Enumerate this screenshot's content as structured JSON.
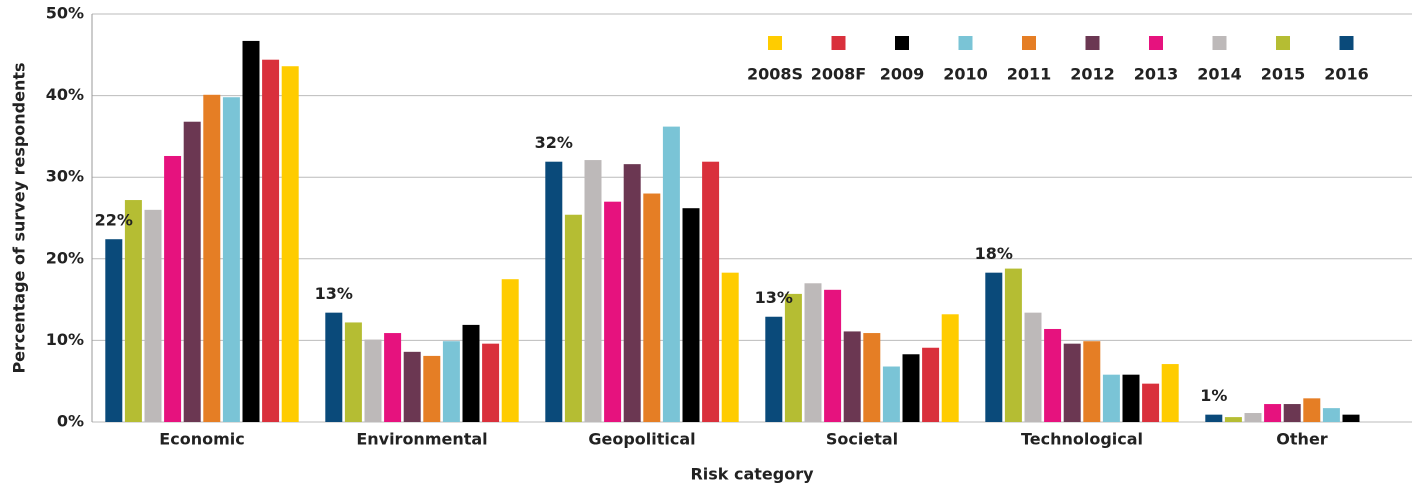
{
  "chart_data": {
    "type": "bar",
    "x_label": "Risk category",
    "y_label": "Percentage of survey respondents",
    "categories": [
      "Economic",
      "Environmental",
      "Geopolitical",
      "Societal",
      "Technological",
      "Other"
    ],
    "ylim": [
      0,
      50
    ],
    "yticks": [
      {
        "value": 0,
        "label": "0%"
      },
      {
        "value": 10,
        "label": "10%"
      },
      {
        "value": 20,
        "label": "20%"
      },
      {
        "value": 30,
        "label": "30%"
      },
      {
        "value": 40,
        "label": "40%"
      },
      {
        "value": 50,
        "label": "50%"
      }
    ],
    "grid": true,
    "legend": "top-right",
    "series": [
      {
        "name": "2008S",
        "color": "#ffcc00",
        "values": [
          43.6,
          17.5,
          18.3,
          13.2,
          7.1,
          null
        ]
      },
      {
        "name": "2008F",
        "color": "#d9303c",
        "values": [
          44.4,
          9.6,
          31.9,
          9.1,
          4.7,
          null
        ]
      },
      {
        "name": "2009",
        "color": "#000000",
        "values": [
          46.7,
          11.9,
          26.2,
          8.3,
          5.8,
          0.9
        ]
      },
      {
        "name": "2010",
        "color": "#7ac4d6",
        "values": [
          39.8,
          9.9,
          36.2,
          6.8,
          5.8,
          1.7
        ]
      },
      {
        "name": "2011",
        "color": "#e57e25",
        "values": [
          40.1,
          8.1,
          28.0,
          10.9,
          9.9,
          2.9
        ]
      },
      {
        "name": "2012",
        "color": "#6b3752",
        "values": [
          36.8,
          8.6,
          31.6,
          11.1,
          9.6,
          2.2
        ]
      },
      {
        "name": "2013",
        "color": "#e6127e",
        "values": [
          32.6,
          10.9,
          27.0,
          16.2,
          11.4,
          2.2
        ]
      },
      {
        "name": "2014",
        "color": "#bdb9b9",
        "values": [
          26.0,
          10.1,
          32.1,
          17.0,
          13.4,
          1.1
        ]
      },
      {
        "name": "2015",
        "color": "#b5bd33",
        "values": [
          27.2,
          12.2,
          25.4,
          15.7,
          18.8,
          0.6
        ]
      },
      {
        "name": "2016",
        "color": "#0a4a7a",
        "values": [
          22.4,
          13.4,
          31.9,
          12.9,
          18.3,
          0.9
        ],
        "value_labels": [
          "22%",
          "13%",
          "32%",
          "13%",
          "18%",
          "1%"
        ]
      }
    ]
  }
}
